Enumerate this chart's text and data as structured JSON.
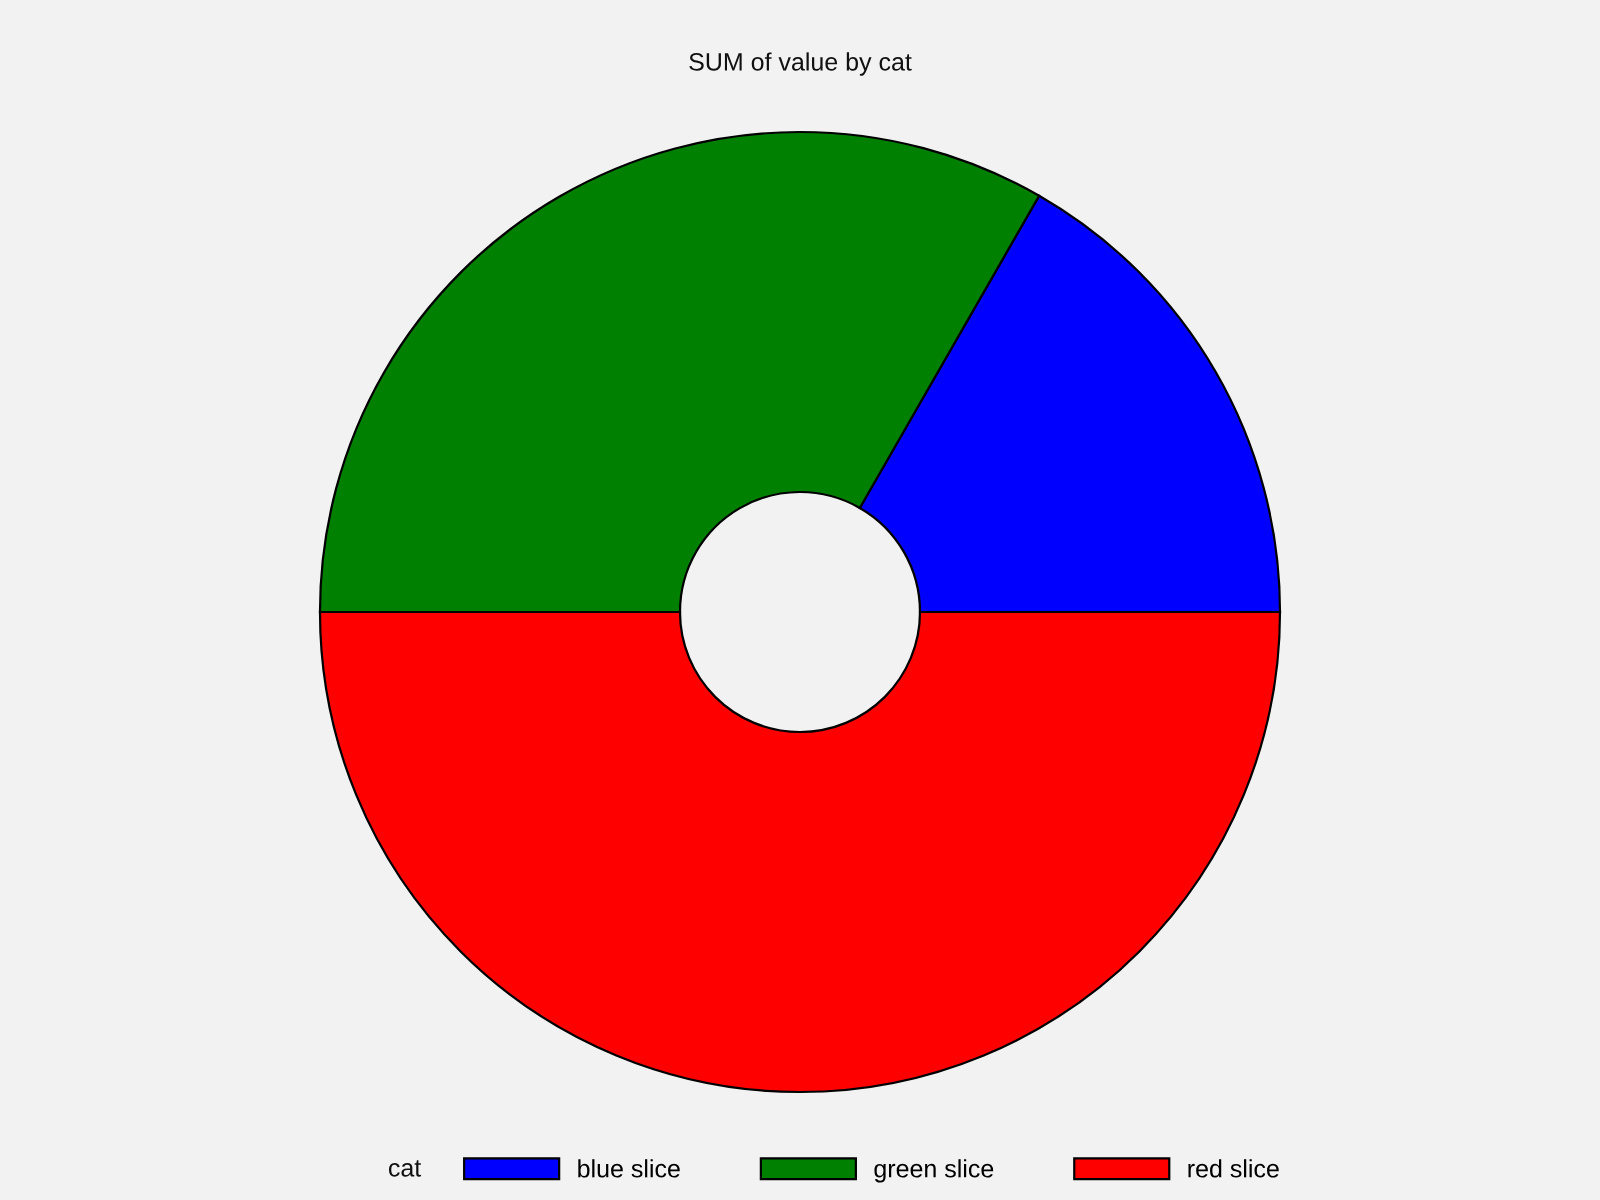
{
  "chart_data": {
    "type": "donut",
    "title": "SUM of value by cat",
    "categories": [
      "blue slice",
      "green slice",
      "red slice"
    ],
    "values": [
      16.7,
      33.3,
      50
    ],
    "colors": [
      "#0000ff",
      "#008000",
      "#ff0000"
    ],
    "legend_title": "cat",
    "legend": "bottom"
  }
}
